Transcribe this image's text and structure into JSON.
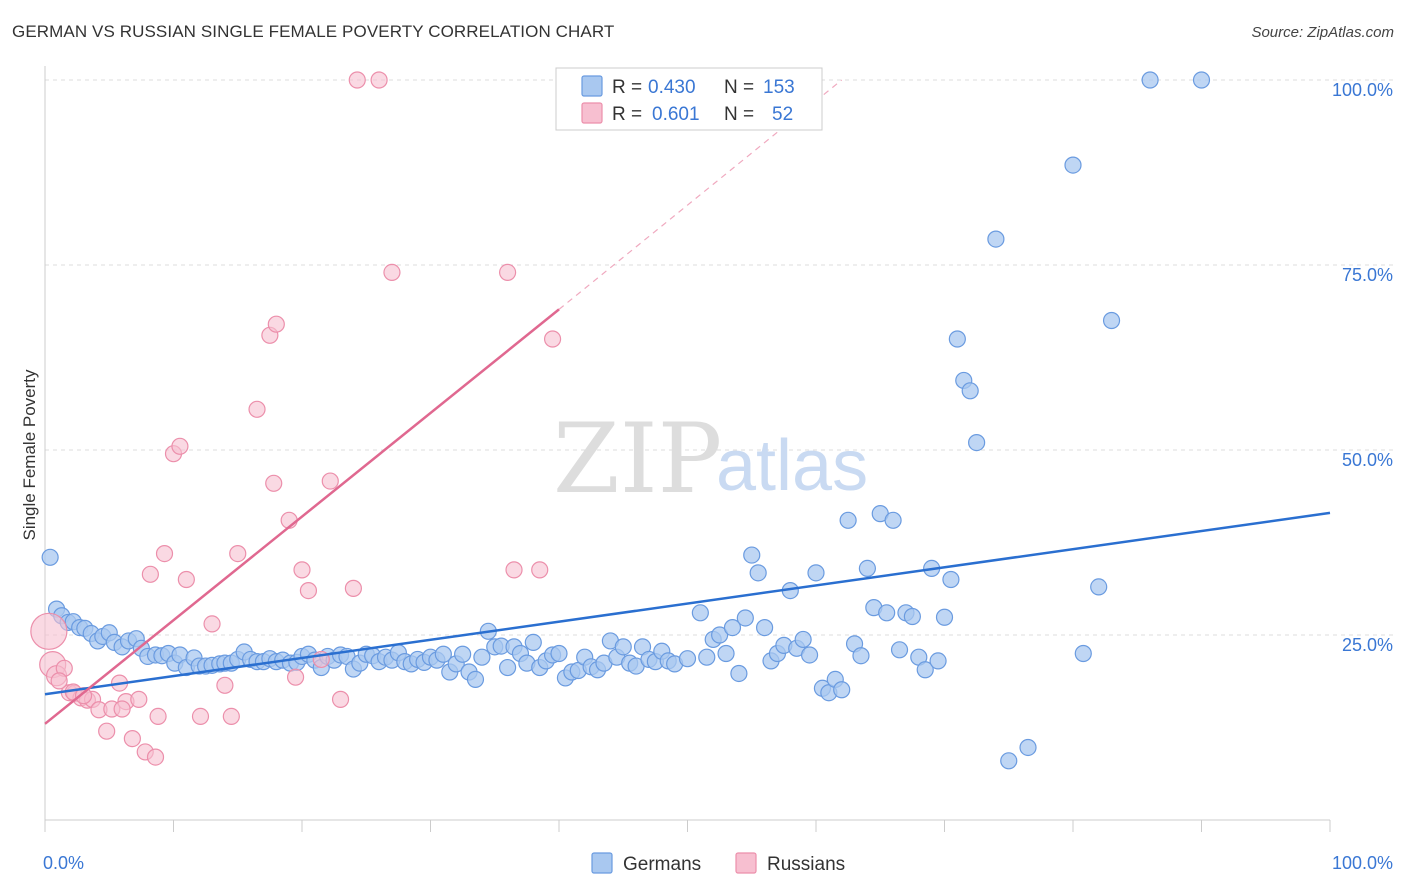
{
  "header": {
    "title": "GERMAN VS RUSSIAN SINGLE FEMALE POVERTY CORRELATION CHART",
    "source": "Source: ZipAtlas.com"
  },
  "watermark": {
    "zip": "ZIP",
    "atlas": "atlas"
  },
  "legend": {
    "r_label": "R =",
    "n_label": "N =",
    "rows": [
      {
        "r": "0.430",
        "n": "153"
      },
      {
        "r": "0.601",
        "n": "52"
      }
    ]
  },
  "bottom_legend": [
    "Germans",
    "Russians"
  ],
  "colors": {
    "germans_fill": "#a9c8f0",
    "germans_stroke": "#6a9be0",
    "germans_line": "#2a6fd0",
    "russians_fill": "#f7bfd0",
    "russians_stroke": "#ec8fab",
    "russians_line": "#e06890",
    "tick_label": "#3a77d4",
    "grid": "#dddddd"
  },
  "chart_data": {
    "type": "scatter",
    "xlabel": "",
    "ylabel": "Single Female Poverty",
    "x_tick_labels": [
      "0.0%",
      "100.0%"
    ],
    "y_tick_labels": [
      "25.0%",
      "50.0%",
      "75.0%",
      "100.0%"
    ],
    "xlim": [
      0,
      100
    ],
    "ylim": [
      0,
      100
    ],
    "y_ticks": [
      25,
      50,
      75,
      100
    ],
    "grid": true,
    "legend_position": "top-center",
    "series": [
      {
        "name": "Germans",
        "r": 0.43,
        "n": 153,
        "trend": {
          "x": [
            0,
            100
          ],
          "y": [
            17,
            41.5
          ]
        },
        "points": [
          [
            0.4,
            35.5
          ],
          [
            0.9,
            28.5
          ],
          [
            1.3,
            27.6
          ],
          [
            1.8,
            26.7
          ],
          [
            2.2,
            26.8
          ],
          [
            2.7,
            26
          ],
          [
            3.1,
            25.9
          ],
          [
            3.6,
            25.2
          ],
          [
            4.1,
            24.2
          ],
          [
            4.5,
            24.8
          ],
          [
            5,
            25.3
          ],
          [
            5.4,
            24
          ],
          [
            6,
            23.4
          ],
          [
            6.5,
            24.2
          ],
          [
            7.1,
            24.5
          ],
          [
            7.5,
            23.2
          ],
          [
            8,
            22.1
          ],
          [
            8.6,
            22.3
          ],
          [
            9.1,
            22.2
          ],
          [
            9.6,
            22.5
          ],
          [
            10.1,
            21.2
          ],
          [
            10.5,
            22.3
          ],
          [
            11,
            20.6
          ],
          [
            11.6,
            21.9
          ],
          [
            12,
            20.8
          ],
          [
            12.5,
            20.8
          ],
          [
            13,
            20.9
          ],
          [
            13.6,
            21.1
          ],
          [
            14,
            21.2
          ],
          [
            14.5,
            21.2
          ],
          [
            15,
            21.7
          ],
          [
            15.5,
            22.7
          ],
          [
            16,
            21.7
          ],
          [
            16.5,
            21.4
          ],
          [
            17,
            21.4
          ],
          [
            17.5,
            21.8
          ],
          [
            18,
            21.4
          ],
          [
            18.5,
            21.6
          ],
          [
            19.1,
            21.2
          ],
          [
            19.6,
            21.3
          ],
          [
            20,
            22.1
          ],
          [
            20.5,
            22.4
          ],
          [
            21,
            21.6
          ],
          [
            21.5,
            20.6
          ],
          [
            22,
            22.1
          ],
          [
            22.5,
            21.6
          ],
          [
            23,
            22.3
          ],
          [
            23.5,
            22.1
          ],
          [
            24,
            20.4
          ],
          [
            24.5,
            21.2
          ],
          [
            25,
            22.4
          ],
          [
            25.5,
            22.2
          ],
          [
            26,
            21.4
          ],
          [
            26.5,
            22
          ],
          [
            27,
            21.6
          ],
          [
            27.5,
            22.6
          ],
          [
            28,
            21.4
          ],
          [
            28.5,
            21.1
          ],
          [
            29,
            21.7
          ],
          [
            29.5,
            21.3
          ],
          [
            30,
            22
          ],
          [
            30.5,
            21.6
          ],
          [
            31,
            22.4
          ],
          [
            31.5,
            20
          ],
          [
            32,
            21.1
          ],
          [
            32.5,
            22.4
          ],
          [
            33,
            20
          ],
          [
            33.5,
            19
          ],
          [
            34,
            22
          ],
          [
            34.5,
            25.5
          ],
          [
            35,
            23.4
          ],
          [
            35.5,
            23.5
          ],
          [
            36,
            20.6
          ],
          [
            36.5,
            23.4
          ],
          [
            37,
            22.5
          ],
          [
            37.5,
            21.2
          ],
          [
            38,
            24
          ],
          [
            38.5,
            20.6
          ],
          [
            39,
            21.5
          ],
          [
            39.5,
            22.3
          ],
          [
            40,
            22.5
          ],
          [
            40.5,
            19.2
          ],
          [
            41,
            20
          ],
          [
            41.5,
            20.2
          ],
          [
            42,
            22
          ],
          [
            42.5,
            20.7
          ],
          [
            43,
            20.3
          ],
          [
            43.5,
            21.2
          ],
          [
            44,
            24.2
          ],
          [
            44.5,
            22
          ],
          [
            45,
            23.4
          ],
          [
            45.5,
            21.2
          ],
          [
            46,
            20.8
          ],
          [
            46.5,
            23.4
          ],
          [
            47,
            21.7
          ],
          [
            47.5,
            21.4
          ],
          [
            48,
            22.8
          ],
          [
            48.5,
            21.5
          ],
          [
            49,
            21.1
          ],
          [
            50,
            21.8
          ],
          [
            51,
            28
          ],
          [
            51.5,
            22
          ],
          [
            52,
            24.4
          ],
          [
            52.5,
            25
          ],
          [
            53,
            22.5
          ],
          [
            53.5,
            26
          ],
          [
            54,
            19.8
          ],
          [
            54.5,
            27.3
          ],
          [
            55,
            35.8
          ],
          [
            55.5,
            33.4
          ],
          [
            56,
            26
          ],
          [
            56.5,
            21.5
          ],
          [
            57,
            22.5
          ],
          [
            57.5,
            23.6
          ],
          [
            58,
            31
          ],
          [
            58.5,
            23.2
          ],
          [
            59,
            24.4
          ],
          [
            59.5,
            22.3
          ],
          [
            60,
            33.4
          ],
          [
            60.5,
            17.8
          ],
          [
            61,
            17.2
          ],
          [
            61.5,
            19
          ],
          [
            62,
            17.6
          ],
          [
            62.5,
            40.5
          ],
          [
            63,
            23.8
          ],
          [
            63.5,
            22.2
          ],
          [
            64,
            34
          ],
          [
            64.5,
            28.7
          ],
          [
            65,
            41.4
          ],
          [
            65.5,
            28
          ],
          [
            66,
            40.5
          ],
          [
            66.5,
            23
          ],
          [
            67,
            28
          ],
          [
            67.5,
            27.5
          ],
          [
            68,
            22
          ],
          [
            68.5,
            20.3
          ],
          [
            69,
            34
          ],
          [
            69.5,
            21.5
          ],
          [
            70,
            27.4
          ],
          [
            70.5,
            32.5
          ],
          [
            71,
            65
          ],
          [
            71.5,
            59.4
          ],
          [
            72,
            58
          ],
          [
            72.5,
            51
          ],
          [
            74,
            78.5
          ],
          [
            75,
            8
          ],
          [
            76.5,
            9.8
          ],
          [
            80,
            88.5
          ],
          [
            80.8,
            22.5
          ],
          [
            82,
            31.5
          ],
          [
            83,
            67.5
          ],
          [
            86,
            100
          ],
          [
            90,
            100
          ]
        ]
      },
      {
        "name": "Russians",
        "r": 0.601,
        "n": 52,
        "trend": {
          "x": [
            0,
            40
          ],
          "y": [
            13,
            69
          ]
        },
        "trend_dashed_to": {
          "x": 62,
          "y": 100
        },
        "points": [
          [
            0.3,
            25.5
          ],
          [
            0.6,
            21
          ],
          [
            0.9,
            19.5
          ],
          [
            1.5,
            20.5
          ],
          [
            1.9,
            17.2
          ],
          [
            2.3,
            17.1
          ],
          [
            2.8,
            16.5
          ],
          [
            3.3,
            16.2
          ],
          [
            3.7,
            16.3
          ],
          [
            4.2,
            14.9
          ],
          [
            4.8,
            12
          ],
          [
            5.2,
            15
          ],
          [
            5.8,
            18.5
          ],
          [
            6.3,
            16
          ],
          [
            6.8,
            11
          ],
          [
            7.3,
            16.3
          ],
          [
            7.8,
            9.2
          ],
          [
            8.2,
            33.2
          ],
          [
            8.8,
            14
          ],
          [
            9.3,
            36
          ],
          [
            10,
            49.5
          ],
          [
            10.5,
            50.5
          ],
          [
            11,
            32.5
          ],
          [
            12.1,
            14
          ],
          [
            13,
            26.5
          ],
          [
            14,
            18.2
          ],
          [
            14.5,
            14
          ],
          [
            15,
            36
          ],
          [
            16.5,
            55.5
          ],
          [
            17.5,
            65.5
          ],
          [
            17.8,
            45.5
          ],
          [
            18,
            67
          ],
          [
            19,
            40.5
          ],
          [
            19.5,
            19.3
          ],
          [
            20,
            33.8
          ],
          [
            20.5,
            31
          ],
          [
            21.5,
            21.7
          ],
          [
            22.2,
            45.8
          ],
          [
            23,
            16.3
          ],
          [
            24,
            31.3
          ],
          [
            24.3,
            100
          ],
          [
            26,
            100
          ],
          [
            27,
            74
          ],
          [
            36,
            74
          ],
          [
            36.5,
            33.8
          ],
          [
            38.5,
            33.8
          ],
          [
            39.5,
            65
          ],
          [
            6,
            15
          ],
          [
            8.6,
            8.5
          ],
          [
            2.2,
            17.3
          ],
          [
            3,
            16.8
          ],
          [
            1.1,
            18.8
          ]
        ]
      }
    ]
  }
}
